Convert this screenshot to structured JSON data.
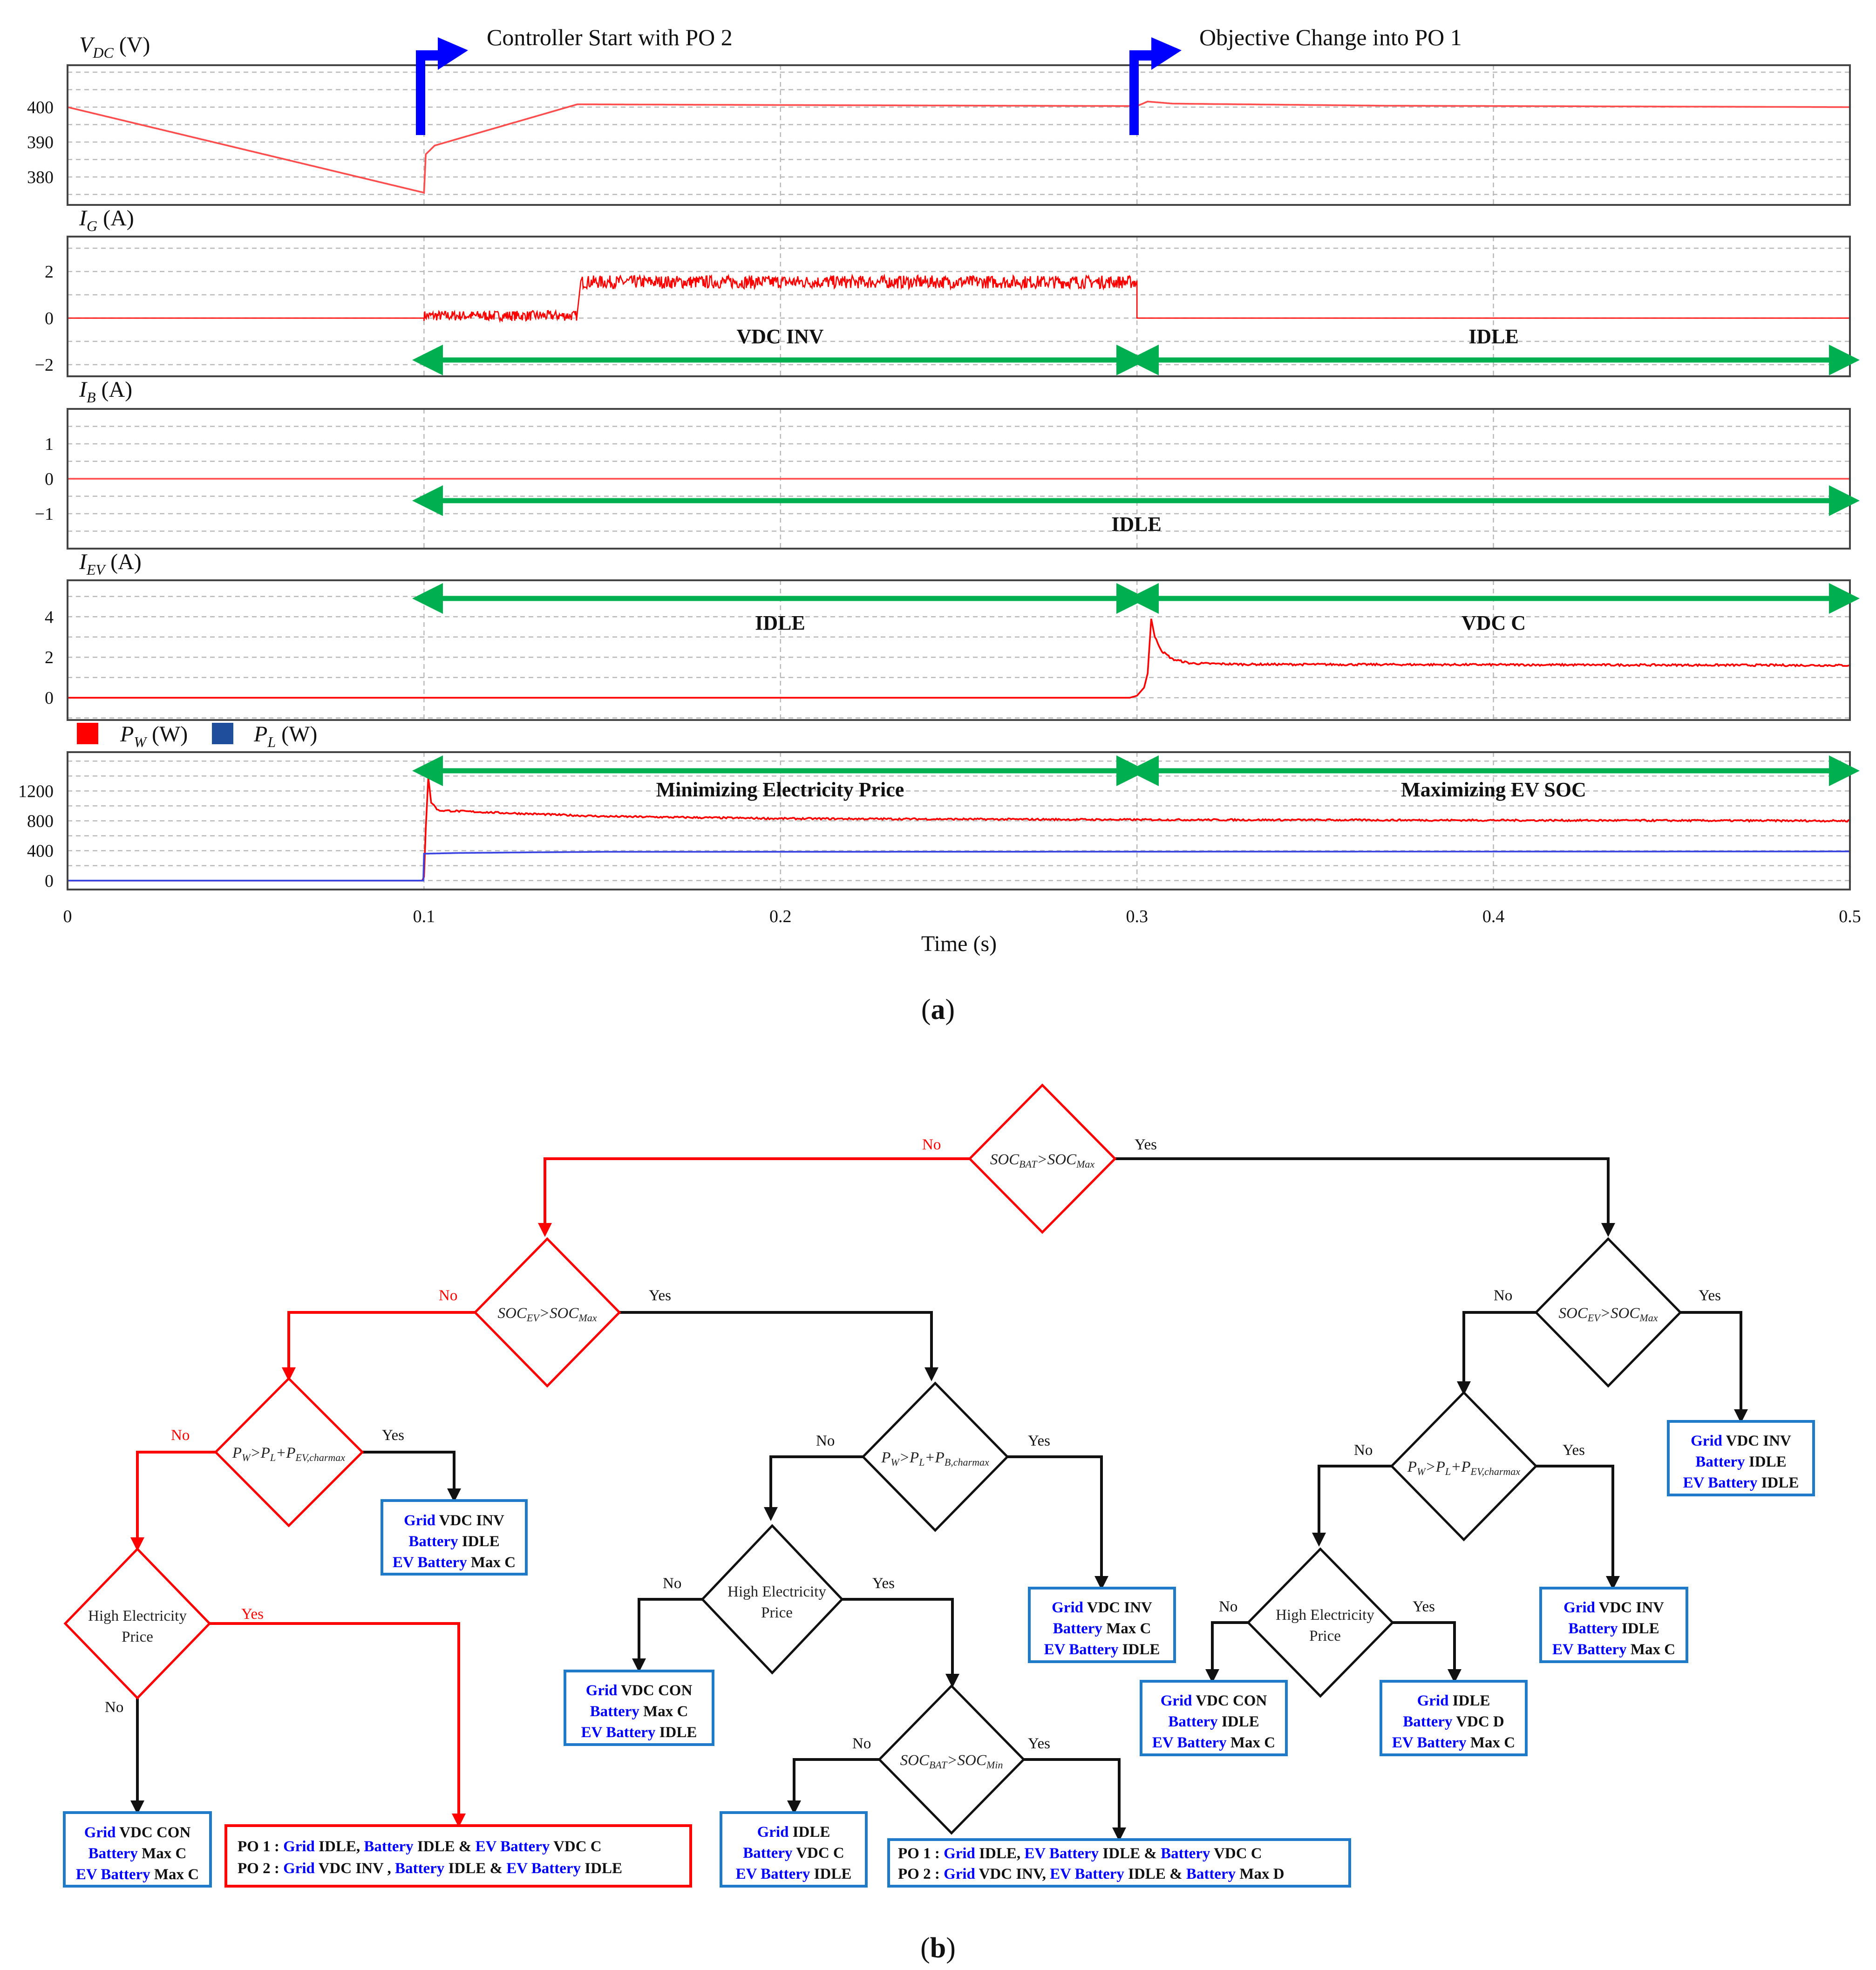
{
  "chart_data": [
    {
      "type": "line",
      "id": "vdc",
      "ylabel_main": "V",
      "ylabel_sub": "DC",
      "ylabel_unit": " (V)",
      "xlim": [
        0,
        0.5
      ],
      "ylim": [
        372,
        412
      ],
      "yticks": [
        {
          "value": 400,
          "label": "400"
        },
        {
          "value": 390,
          "label": "390"
        },
        {
          "value": 380,
          "label": "380"
        }
      ],
      "series": [
        {
          "name": "VDC",
          "color": "#ff4d4d",
          "points": [
            [
              0,
              400
            ],
            [
              0.1,
              375.5
            ],
            [
              0.1005,
              386.5
            ],
            [
              0.103,
              389
            ],
            [
              0.143,
              400.8
            ],
            [
              0.2,
              400.6
            ],
            [
              0.298,
              400.3
            ],
            [
              0.3,
              400.3
            ],
            [
              0.303,
              401.6
            ],
            [
              0.31,
              401
            ],
            [
              0.37,
              400.4
            ],
            [
              0.5,
              400
            ]
          ]
        }
      ]
    },
    {
      "type": "line",
      "id": "ig",
      "ylabel_main": "I",
      "ylabel_sub": "G",
      "ylabel_unit": " (A)",
      "xlim": [
        0,
        0.5
      ],
      "ylim": [
        -2.5,
        3.5
      ],
      "yticks": [
        {
          "value": 2,
          "label": "2"
        },
        {
          "value": 0,
          "label": "0"
        },
        {
          "value": -2,
          "label": "−2"
        }
      ],
      "series": [
        {
          "name": "IG",
          "color": "#ff0000",
          "segments": [
            {
              "x0": 0,
              "x1": 0.1,
              "mean": 0,
              "noise": 0
            },
            {
              "x0": 0.1,
              "x1": 0.143,
              "mean": 0.1,
              "noise": 0.22
            },
            {
              "x0": 0.144,
              "x1": 0.3,
              "mean": 1.55,
              "noise": 0.28
            },
            {
              "x0": 0.3,
              "x1": 0.5,
              "mean": 0,
              "noise": 0
            }
          ]
        }
      ]
    },
    {
      "type": "line",
      "id": "ib",
      "ylabel_main": "I",
      "ylabel_sub": "B",
      "ylabel_unit": " (A)",
      "xlim": [
        0,
        0.5
      ],
      "ylim": [
        -2,
        2
      ],
      "yticks": [
        {
          "value": 1,
          "label": "1"
        },
        {
          "value": 0,
          "label": "0"
        },
        {
          "value": -1,
          "label": "−1"
        }
      ],
      "series": [
        {
          "name": "IB",
          "color": "#ff4d4d",
          "points": [
            [
              0,
              0
            ],
            [
              0.5,
              0
            ]
          ]
        }
      ]
    },
    {
      "type": "line",
      "id": "iev",
      "ylabel_main": "I",
      "ylabel_sub": "EV",
      "ylabel_unit": " (A)",
      "xlim": [
        0,
        0.5
      ],
      "ylim": [
        -1.1,
        5.8
      ],
      "yticks": [
        {
          "value": 4,
          "label": "4"
        },
        {
          "value": 2,
          "label": "2"
        },
        {
          "value": 0,
          "label": "0"
        }
      ],
      "series": [
        {
          "name": "IEV",
          "color": "#ff0000",
          "points": [
            [
              0,
              0
            ],
            [
              0.298,
              0
            ],
            [
              0.3,
              0.1
            ],
            [
              0.302,
              0.5
            ],
            [
              0.303,
              1.2
            ],
            [
              0.304,
              3.9
            ],
            [
              0.305,
              3.0
            ],
            [
              0.307,
              2.3
            ],
            [
              0.31,
              1.9
            ],
            [
              0.315,
              1.7
            ],
            [
              0.33,
              1.65
            ],
            [
              0.5,
              1.6
            ]
          ],
          "noise_after": 0.305,
          "noise_amp": 0.05
        }
      ]
    },
    {
      "type": "line",
      "id": "power",
      "xlim": [
        0,
        0.5
      ],
      "ylim": [
        -120,
        1720
      ],
      "yticks": [
        {
          "value": 1200,
          "label": "1200"
        },
        {
          "value": 800,
          "label": "800"
        },
        {
          "value": 400,
          "label": "400"
        },
        {
          "value": 0,
          "label": "0"
        }
      ],
      "legend": {
        "placement": "top-left",
        "items": [
          {
            "main": "P",
            "sub": "W",
            "unit": " (W)",
            "color": "#ff0000"
          },
          {
            "main": "P",
            "sub": "L",
            "unit": " (W)",
            "color": "#1f4e9c"
          }
        ]
      },
      "series": [
        {
          "name": "PW",
          "color": "#ff0000",
          "points": [
            [
              0,
              0
            ],
            [
              0.0995,
              0
            ],
            [
              0.1,
              50
            ],
            [
              0.1005,
              700
            ],
            [
              0.1012,
              1380
            ],
            [
              0.102,
              1050
            ],
            [
              0.104,
              940
            ],
            [
              0.12,
              910
            ],
            [
              0.15,
              860
            ],
            [
              0.2,
              830
            ],
            [
              0.3,
              815
            ],
            [
              0.5,
              800
            ]
          ],
          "noise_after": 0.1012,
          "noise_amp": 12
        },
        {
          "name": "PL",
          "color": "#3a44e0",
          "points": [
            [
              0,
              0
            ],
            [
              0.0998,
              0
            ],
            [
              0.1,
              360
            ],
            [
              0.11,
              370
            ],
            [
              0.13,
              378
            ],
            [
              0.15,
              385
            ],
            [
              0.5,
              390
            ]
          ]
        }
      ]
    }
  ],
  "plot_labels": {
    "xlabel": "Time (s)",
    "xticks": [
      {
        "value": 0,
        "label": "0"
      },
      {
        "value": 0.1,
        "label": "0.1"
      },
      {
        "value": 0.2,
        "label": "0.2"
      },
      {
        "value": 0.3,
        "label": "0.3"
      },
      {
        "value": 0.4,
        "label": "0.4"
      },
      {
        "value": 0.5,
        "label": "0.5"
      }
    ],
    "event1": "Controller Start with PO 2",
    "event2": "Objective Change into PO 1",
    "ig_mode_1": "VDC INV",
    "ig_mode_2": "IDLE",
    "ib_mode": "IDLE",
    "iev_mode_1": "IDLE",
    "iev_mode_2": "VDC C",
    "p_mode_1": "Minimizing Electricity Price",
    "p_mode_2": "Maximizing EV SOC"
  },
  "captions": {
    "a": "(a)",
    "b": "(b)"
  },
  "colors": {
    "accent_blue": "#0000ff",
    "arrow_green": "#00b050",
    "box_border": "#1f7bc8",
    "red_path": "#ff0000"
  },
  "flowchart": {
    "d1": {
      "pre": "SOC",
      "sub1": "BAT",
      "mid": ">SOC",
      "sub2": "Max"
    },
    "d2": {
      "pre": "SOC",
      "sub1": "EV",
      "mid": ">SOC",
      "sub2": "Max"
    },
    "d3": {
      "a": "P",
      "as": "W",
      "b": ">P",
      "bs": "L",
      "c": "+P",
      "cs": "EV,charmax"
    },
    "d4": {
      "l1": "High Electricity",
      "l2": "Price"
    },
    "d5": {
      "a": "P",
      "as": "W",
      "b": ">P",
      "bs": "L",
      "c": "+P",
      "cs": "B,charmax"
    },
    "d6": {
      "l1": "High Electricity",
      "l2": "Price"
    },
    "d7": {
      "pre": "SOC",
      "sub1": "BAT",
      "mid": ">SOC",
      "sub2": "Min"
    },
    "d8": {
      "pre": "SOC",
      "sub1": "EV",
      "mid": ">SOC",
      "sub2": "Max"
    },
    "d9": {
      "a": "P",
      "as": "W",
      "b": ">P",
      "bs": "L",
      "c": "+P",
      "cs": "EV,charmax"
    },
    "d10": {
      "l1": "High Electricity",
      "l2": "Price"
    },
    "yes": "Yes",
    "no": "No",
    "w": {
      "grid": "Grid",
      "battery": "Battery",
      "ev": "EV Battery",
      "po1": "PO 1 :",
      "po2": "PO 2 :"
    },
    "s": {
      "vdc_inv": "VDC INV",
      "idle": "IDLE",
      "max_c": "Max C",
      "vdc_con": "VDC CON",
      "vdc_c": "VDC C",
      "vdc_d": "VDC D",
      "max_d": "Max D",
      "comma": ",",
      "amp": "&",
      "dot_comma": ","
    }
  }
}
